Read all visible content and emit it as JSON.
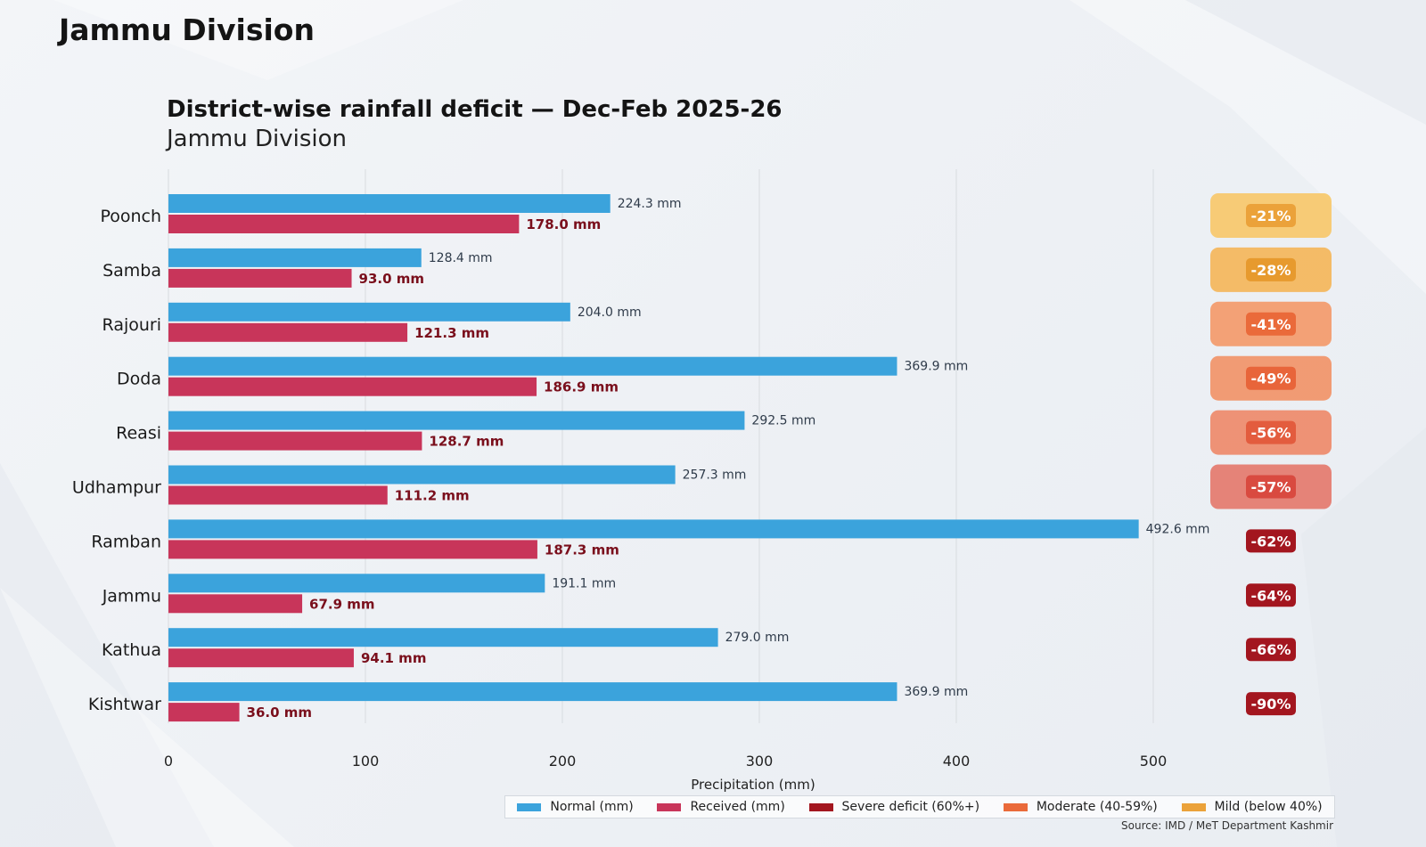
{
  "page": {
    "heading": "Jammu Division"
  },
  "legend": {
    "items": [
      {
        "label": "Normal (mm)",
        "color": "#3ba3dc"
      },
      {
        "label": "Received (mm)",
        "color": "#c8355a"
      },
      {
        "label": "Severe deficit (60%+)",
        "color": "#a3161f"
      },
      {
        "label": "Moderate (40-59%)",
        "color": "#ea6a3a"
      },
      {
        "label": "Mild (below 40%)",
        "color": "#eba23a"
      }
    ]
  },
  "source": "Source: IMD / MeT Department Kashmir",
  "chart_data": {
    "type": "bar",
    "orientation": "horizontal",
    "title": "District-wise rainfall deficit — Dec-Feb 2025-26",
    "subtitle": "Jammu Division",
    "xlabel": "Precipitation (mm)",
    "xlim": [
      0,
      500
    ],
    "xticks": [
      "0",
      "100",
      "200",
      "300",
      "400",
      "500"
    ],
    "grid": true,
    "categories": [
      "Poonch",
      "Samba",
      "Rajouri",
      "Doda",
      "Reasi",
      "Udhampur",
      "Ramban",
      "Jammu",
      "Kathua",
      "Kishtwar"
    ],
    "series": [
      {
        "name": "Normal (mm)",
        "color": "#3ba3dc",
        "values": [
          224.3,
          128.4,
          204.0,
          369.9,
          292.5,
          257.3,
          492.6,
          191.1,
          279.0,
          369.9
        ],
        "labels": [
          "224.3 mm",
          "128.4 mm",
          "204.0 mm",
          "369.9 mm",
          "292.5 mm",
          "257.3 mm",
          "492.6 mm",
          "191.1 mm",
          "279.0 mm",
          "369.9 mm"
        ]
      },
      {
        "name": "Received (mm)",
        "color": "#c8355a",
        "values": [
          178.0,
          93.0,
          121.3,
          186.9,
          128.7,
          111.2,
          187.3,
          67.9,
          94.1,
          36.0
        ],
        "labels": [
          "178.0 mm",
          "93.0 mm",
          "121.3 mm",
          "186.9 mm",
          "128.7 mm",
          "111.2 mm",
          "187.3 mm",
          "67.9 mm",
          "94.1 mm",
          "36.0 mm"
        ]
      }
    ],
    "deficits": [
      {
        "label": "-21%",
        "category": "Mild (below 40%)",
        "color": "#eba23a",
        "box": "#f7c86a"
      },
      {
        "label": "-28%",
        "category": "Mild (below 40%)",
        "color": "#e79a2e",
        "box": "#f4b65a"
      },
      {
        "label": "-41%",
        "category": "Moderate (40-59%)",
        "color": "#ea6a3a",
        "box": "#f39a6a"
      },
      {
        "label": "-49%",
        "category": "Moderate (40-59%)",
        "color": "#e8653a",
        "box": "#f19468"
      },
      {
        "label": "-56%",
        "category": "Moderate (40-59%)",
        "color": "#e35c3e",
        "box": "#ee8a6a"
      },
      {
        "label": "-57%",
        "category": "Moderate (40-59%)",
        "color": "#d94a40",
        "box": "#e47a6e"
      },
      {
        "label": "-62%",
        "category": "Severe deficit (60%+)",
        "color": "#a3161f",
        "box": ""
      },
      {
        "label": "-64%",
        "category": "Severe deficit (60%+)",
        "color": "#a3161f",
        "box": ""
      },
      {
        "label": "-66%",
        "category": "Severe deficit (60%+)",
        "color": "#a3161f",
        "box": ""
      },
      {
        "label": "-90%",
        "category": "Severe deficit (60%+)",
        "color": "#a3161f",
        "box": ""
      }
    ],
    "colors": {
      "grid": "#dcdfe3",
      "normal_label": "#2f3b4a",
      "received_label": "#7a0f1c",
      "badge_text": "#ffffff"
    }
  }
}
